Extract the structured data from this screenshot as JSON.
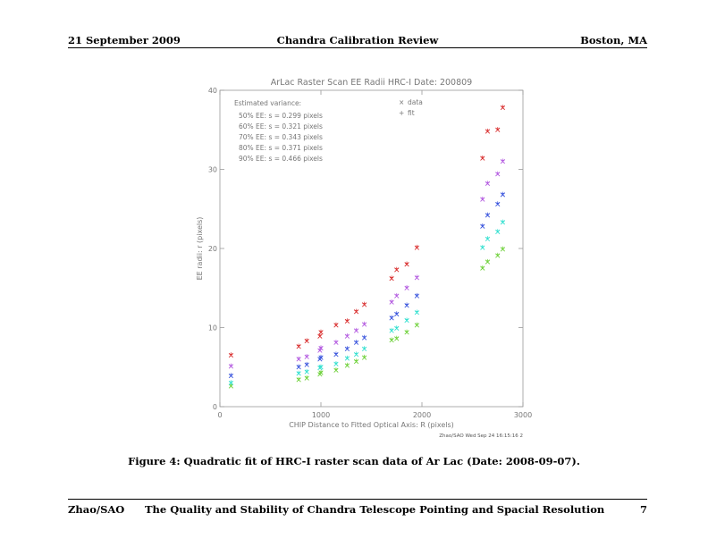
{
  "header": {
    "left": "21 September 2009",
    "center": "Chandra Calibration Review",
    "right": "Boston, MA"
  },
  "caption": "Figure 4: Quadratic fit of HRC-I raster scan data of Ar Lac (Date: 2008-09-07).",
  "footer": {
    "left": "Zhao/SAO",
    "center": "The Quality and Stability of Chandra Telescope Pointing and Spacial Resolution",
    "right": "7"
  },
  "chart_data": {
    "type": "scatter",
    "title": "ArLac Raster Scan EE Radii   HRC-I   Date: 200809",
    "xlabel": "CHIP Distance to Fitted Optical Axis: R (pixels)",
    "ylabel": "EE radii: r (pixels)",
    "xlim": [
      0,
      3000
    ],
    "ylim": [
      0,
      40
    ],
    "x_ticks": [
      0,
      1000,
      2000,
      3000
    ],
    "y_ticks": [
      0,
      10,
      20,
      30,
      40
    ],
    "grid": false,
    "legend": {
      "placement": "top-center",
      "entries": [
        {
          "marker": "×",
          "label": "data"
        },
        {
          "marker": "+",
          "label": "fit"
        }
      ]
    },
    "annotation": {
      "heading": "Estimated variance:",
      "lines": [
        "50% EE: s = 0.299 pixels",
        "60% EE: s = 0.321 pixels",
        "70% EE: s = 0.343 pixels",
        "80% EE: s = 0.371 pixels",
        "90% EE: s = 0.466 pixels"
      ]
    },
    "footnote": "Zhao/SAO Wed Sep 24 16:15:16 2",
    "series": [
      {
        "color": "#6fd13a",
        "x": [
          110,
          780,
          860,
          990,
          1000,
          1150,
          1260,
          1350,
          1430,
          1700,
          1750,
          1850,
          1950,
          2600,
          2650,
          2750,
          2800
        ],
        "y": [
          2.6,
          3.4,
          3.6,
          4.1,
          4.3,
          4.6,
          5.2,
          5.7,
          6.2,
          8.4,
          8.6,
          9.4,
          10.3,
          17.5,
          18.3,
          19.1,
          19.9
        ]
      },
      {
        "color": "#33e0d0",
        "x": [
          110,
          780,
          860,
          990,
          1000,
          1150,
          1260,
          1350,
          1430,
          1700,
          1750,
          1850,
          1950,
          2600,
          2650,
          2750,
          2800
        ],
        "y": [
          3.0,
          4.2,
          4.4,
          4.9,
          5.0,
          5.4,
          6.1,
          6.6,
          7.3,
          9.6,
          9.9,
          10.9,
          11.9,
          20.1,
          21.2,
          22.1,
          23.3
        ]
      },
      {
        "color": "#3a55dd",
        "x": [
          110,
          780,
          860,
          990,
          1000,
          1150,
          1260,
          1350,
          1430,
          1700,
          1750,
          1850,
          1950,
          2600,
          2650,
          2750,
          2800
        ],
        "y": [
          3.9,
          5.0,
          5.3,
          6.0,
          6.2,
          6.6,
          7.3,
          8.1,
          8.7,
          11.2,
          11.7,
          12.8,
          14.0,
          22.8,
          24.2,
          25.6,
          26.8
        ]
      },
      {
        "color": "#b35ae0",
        "x": [
          110,
          780,
          860,
          990,
          1000,
          1150,
          1260,
          1350,
          1430,
          1700,
          1750,
          1850,
          1950,
          2600,
          2650,
          2750,
          2800
        ],
        "y": [
          5.1,
          6.0,
          6.3,
          7.1,
          7.4,
          8.1,
          8.9,
          9.6,
          10.4,
          13.2,
          14.0,
          15.0,
          16.3,
          26.2,
          28.2,
          29.4,
          31.0
        ]
      },
      {
        "color": "#d93030",
        "x": [
          110,
          780,
          860,
          990,
          1000,
          1150,
          1260,
          1350,
          1430,
          1700,
          1750,
          1850,
          1950,
          2600,
          2650,
          2750,
          2800
        ],
        "y": [
          6.5,
          7.6,
          8.3,
          8.9,
          9.4,
          10.3,
          10.8,
          12.0,
          12.9,
          16.2,
          17.3,
          18.0,
          20.1,
          31.4,
          34.8,
          35.0,
          37.8
        ]
      }
    ]
  }
}
